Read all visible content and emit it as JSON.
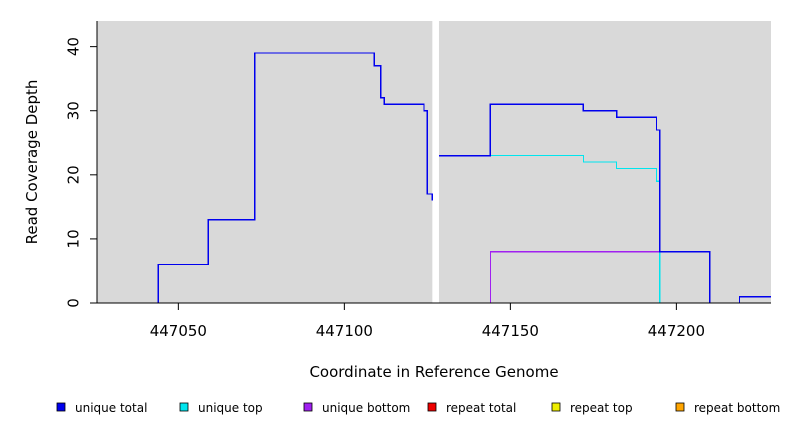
{
  "chart_data": {
    "type": "line",
    "title": "",
    "xlabel": "Coordinate in Reference Genome",
    "ylabel": "Read Coverage Depth",
    "xlim": [
      447025.5,
      447228.5
    ],
    "ylim": [
      0,
      44
    ],
    "x_ticks": [
      447050,
      447100,
      447150,
      447200
    ],
    "x_tick_labels": [
      "447050",
      "447100",
      "447150",
      "447200"
    ],
    "y_ticks": [
      0,
      10,
      20,
      30,
      40
    ],
    "y_tick_labels": [
      "0",
      "10",
      "20",
      "30",
      "40"
    ],
    "gap": [
      447126.5,
      447128.5
    ],
    "grid": false,
    "legend_position": "bottom",
    "background": "#d9d9d9",
    "series": [
      {
        "name": "unique total",
        "color": "#0000ee",
        "segments": [
          {
            "x": [
              447025.5,
              447044,
              447059,
              447073,
              447109,
              447111,
              447112,
              447124,
              447125,
              447126.5
            ],
            "y": [
              0,
              6,
              13,
              39,
              37,
              32,
              31,
              30,
              17,
              16
            ]
          },
          {
            "x": [
              447128.5,
              447144,
              447172,
              447182,
              447194,
              447195,
              447210,
              447219,
              447228.5
            ],
            "y": [
              23,
              31,
              30,
              29,
              27,
              8,
              0,
              1,
              1
            ]
          }
        ]
      },
      {
        "name": "unique top",
        "color": "#00e5ee",
        "segments": [
          {
            "x": [
              447025.5,
              447044,
              447059,
              447073,
              447109,
              447111,
              447112,
              447124,
              447125,
              447126.5
            ],
            "y": [
              0,
              6,
              13,
              39,
              37,
              32,
              31,
              30,
              17,
              16
            ]
          },
          {
            "x": [
              447128.5,
              447172,
              447182,
              447194,
              447195,
              447228.5
            ],
            "y": [
              23,
              22,
              21,
              19,
              0,
              0
            ]
          }
        ]
      },
      {
        "name": "unique bottom",
        "color": "#a020f0",
        "segments": [
          {
            "x": [
              447025.5,
              447126.5
            ],
            "y": [
              0,
              0
            ]
          },
          {
            "x": [
              447128.5,
              447144,
              447195,
              447210,
              447228.5
            ],
            "y": [
              0,
              8,
              8,
              0,
              0
            ]
          }
        ]
      },
      {
        "name": "repeat total",
        "color": "#ee0000",
        "segments": [
          {
            "x": [
              447025.5,
              447126.5
            ],
            "y": [
              0,
              0
            ]
          },
          {
            "x": [
              447128.5,
              447228.5
            ],
            "y": [
              0,
              0
            ]
          }
        ]
      },
      {
        "name": "repeat top",
        "color": "#eeee00",
        "segments": [
          {
            "x": [
              447025.5,
              447126.5
            ],
            "y": [
              0,
              0
            ]
          },
          {
            "x": [
              447128.5,
              447228.5
            ],
            "y": [
              0,
              0
            ]
          }
        ]
      },
      {
        "name": "repeat bottom",
        "color": "#ffa500",
        "segments": [
          {
            "x": [
              447025.5,
              447126.5
            ],
            "y": [
              0,
              0
            ]
          },
          {
            "x": [
              447128.5,
              447228.5
            ],
            "y": [
              0,
              0
            ]
          }
        ]
      }
    ]
  }
}
